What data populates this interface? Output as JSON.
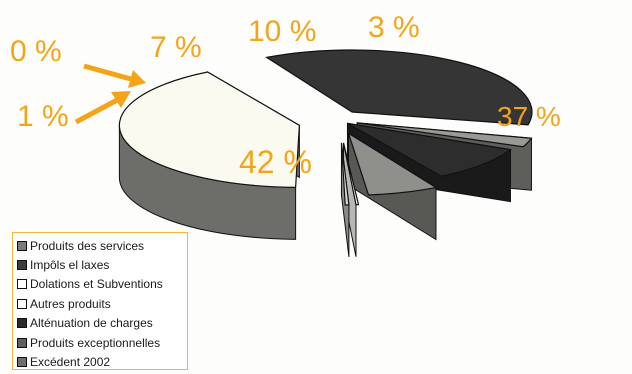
{
  "chart_data": {
    "type": "pie",
    "labels": [
      "Produits des services",
      "Impôls el laxes",
      "Dolations et Subventions",
      "Autres produits",
      "Alténuation de charges",
      "Produits exceptionnelles",
      "Excédent 2002"
    ],
    "values": [
      42,
      37,
      3,
      10,
      7,
      0,
      1
    ],
    "value_labels": [
      "42 %",
      "37 %",
      "3 %",
      "10 %",
      "7 %",
      "0 %",
      "1 %"
    ],
    "legend_position": "bottom-left",
    "colors": {
      "label": "#f4a418",
      "legend_border": "#f6b23c"
    },
    "slice_colors": [
      "#fbfaf1",
      "#353535",
      "#9a9a94",
      "#2d2d2d",
      "#8f8f8b",
      "#f4f4ef",
      "#d8d8d2"
    ],
    "side_colors": [
      "#6d6d6a",
      "#1f1f1f",
      "#5e5e5a",
      "#1a1a1a",
      "#585854",
      "#b8b8b2",
      "#8a8a86"
    ],
    "legend_swatches": [
      "#7a7a76",
      "#3c3c3c",
      "#ffffff",
      "#ffffff",
      "#2a2a2a",
      "#5f5f5c",
      "#6e6e6a"
    ]
  }
}
